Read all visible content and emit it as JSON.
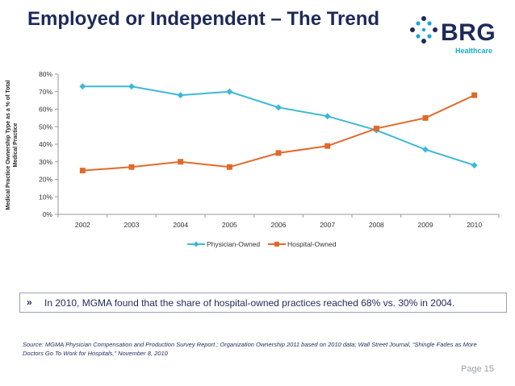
{
  "slide": {
    "title": "Employed or Independent – The Trend",
    "page_label": "Page 15"
  },
  "logo": {
    "word": "BRG",
    "sub": "Healthcare",
    "colors": {
      "navy": "#1d2a5a",
      "cyan": "#1aa9d4"
    }
  },
  "chart_data": {
    "type": "line",
    "title": "",
    "xlabel": "",
    "ylabel_lines": [
      "Medical Practice Ownership Type as a % of Total",
      "Medical Practice"
    ],
    "categories": [
      "2002",
      "2003",
      "2004",
      "2005",
      "2006",
      "2007",
      "2008",
      "2009",
      "2010"
    ],
    "yticks": [
      "0%",
      "10%",
      "20%",
      "30%",
      "40%",
      "50%",
      "60%",
      "70%",
      "80%"
    ],
    "ylim": [
      0,
      80
    ],
    "grid": false,
    "legend_position": "bottom-center",
    "series": [
      {
        "name": "Physician-Owned",
        "color": "#3db8d8",
        "marker": "diamond",
        "values": [
          73,
          73,
          68,
          70,
          61,
          56,
          48,
          37,
          28
        ]
      },
      {
        "name": "Hospital-Owned",
        "color": "#e06a2b",
        "marker": "square",
        "values": [
          25,
          27,
          30,
          27,
          35,
          39,
          49,
          55,
          68
        ]
      }
    ]
  },
  "note": {
    "bullet": "»",
    "text": "In 2010, MGMA found that the share of hospital-owned practices reached 68% vs. 30% in 2004."
  },
  "source": "Source: MGMA Physician Compensation and Production Survey Report ; Organization Ownership 2011 based on 2010 data; Wall Street Journal, “Shingle Fades as More Doctors Go To Work for Hospitals,” November 8, 2010"
}
